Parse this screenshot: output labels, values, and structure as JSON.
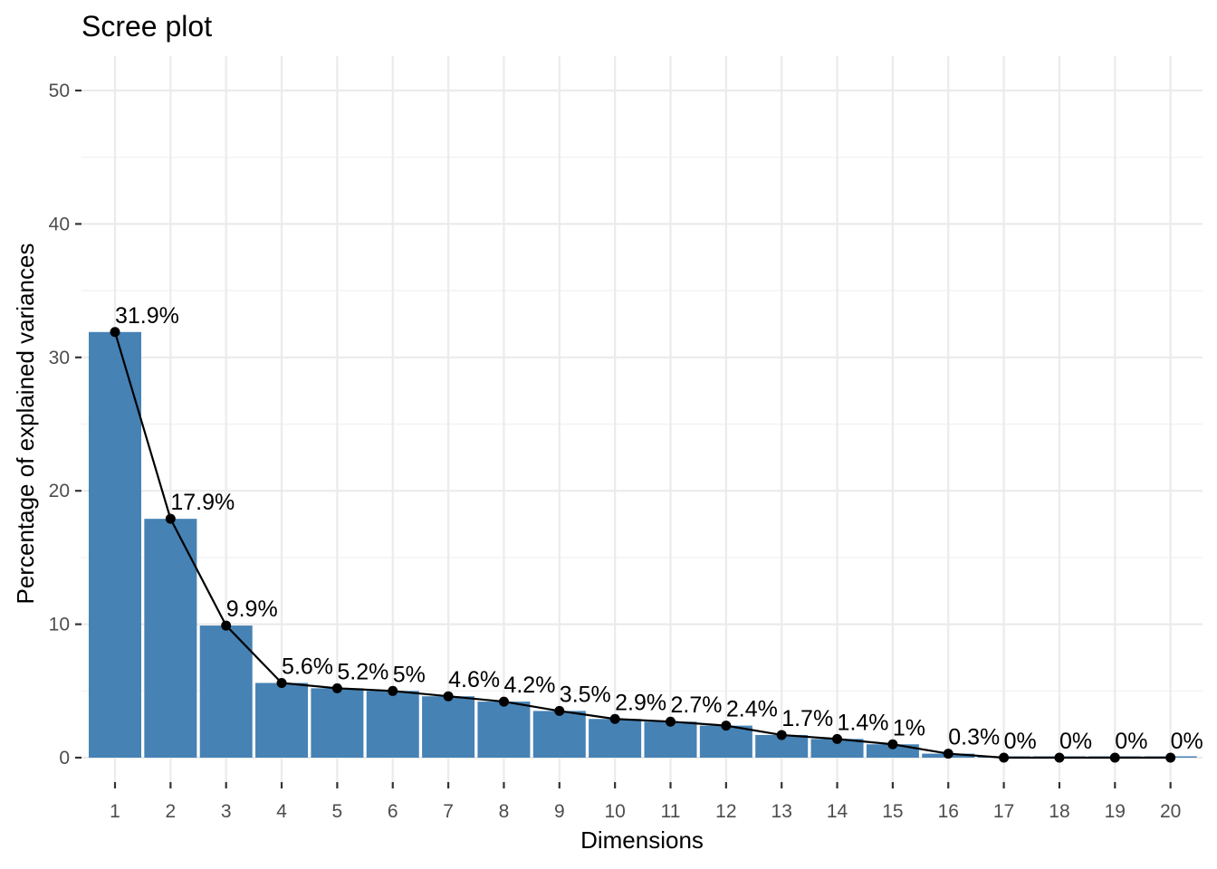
{
  "chart_data": {
    "type": "bar",
    "title": "Scree plot",
    "xlabel": "Dimensions",
    "ylabel": "Percentage of explained variances",
    "categories": [
      "1",
      "2",
      "3",
      "4",
      "5",
      "6",
      "7",
      "8",
      "9",
      "10",
      "11",
      "12",
      "13",
      "14",
      "15",
      "16",
      "17",
      "18",
      "19",
      "20"
    ],
    "values": [
      31.9,
      17.9,
      9.9,
      5.6,
      5.2,
      5.0,
      4.6,
      4.2,
      3.5,
      2.9,
      2.7,
      2.4,
      1.7,
      1.4,
      1.0,
      0.3,
      0.0,
      0.0,
      0.0,
      0.0
    ],
    "data_labels": [
      "31.9%",
      "17.9%",
      "9.9%",
      "5.6%",
      "5.2%",
      "5%",
      "4.6%",
      "4.2%",
      "3.5%",
      "2.9%",
      "2.7%",
      "2.4%",
      "1.7%",
      "1.4%",
      "1%",
      "0.3%",
      "0%",
      "0%",
      "0%",
      "0%"
    ],
    "ylim": [
      0,
      50
    ],
    "yticks": [
      0,
      10,
      20,
      30,
      40,
      50
    ],
    "grid": true,
    "bar_color": "#4682b4",
    "line_color": "#000000",
    "overlay": "line with points"
  }
}
